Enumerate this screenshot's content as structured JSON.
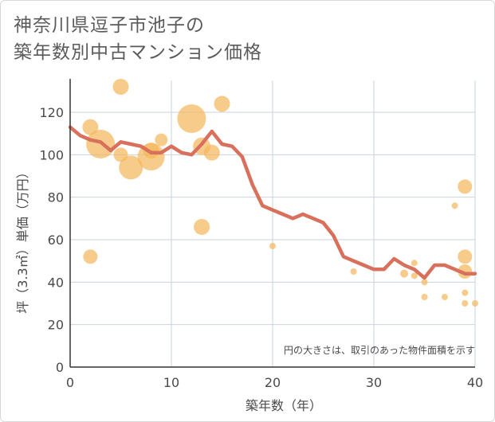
{
  "title_line1": "神奈川県逗子市池子の",
  "title_line2": "築年数別中古マンション価格",
  "chart_data": {
    "type": "scatter",
    "title": "神奈川県逗子市池子の築年数別中古マンション価格",
    "xlabel": "築年数（年）",
    "ylabel": "坪（3.3㎡）単価（万円）",
    "xlim": [
      0,
      40
    ],
    "ylim": [
      0,
      135
    ],
    "xticks": [
      0,
      10,
      20,
      30,
      40
    ],
    "yticks": [
      0,
      20,
      40,
      60,
      80,
      100,
      120
    ],
    "grid": true,
    "note": "円の大きさは、取引のあった物件面積を示す",
    "colors": {
      "bubble": "#f3b75a",
      "line": "#d8705c",
      "grid": "#c9d3de",
      "axis": "#333333"
    },
    "bubbles": [
      {
        "x": 2,
        "y": 113,
        "r": 10
      },
      {
        "x": 2,
        "y": 52,
        "r": 9
      },
      {
        "x": 3,
        "y": 105,
        "r": 18
      },
      {
        "x": 5,
        "y": 132,
        "r": 10
      },
      {
        "x": 5,
        "y": 100,
        "r": 9
      },
      {
        "x": 6,
        "y": 94,
        "r": 15
      },
      {
        "x": 8,
        "y": 99,
        "r": 17
      },
      {
        "x": 8,
        "y": 102,
        "r": 10
      },
      {
        "x": 9,
        "y": 107,
        "r": 8
      },
      {
        "x": 12,
        "y": 117,
        "r": 18
      },
      {
        "x": 13,
        "y": 104,
        "r": 11
      },
      {
        "x": 13,
        "y": 66,
        "r": 10
      },
      {
        "x": 14,
        "y": 101,
        "r": 10
      },
      {
        "x": 15,
        "y": 124,
        "r": 10
      },
      {
        "x": 20,
        "y": 57,
        "r": 4
      },
      {
        "x": 28,
        "y": 45,
        "r": 4
      },
      {
        "x": 33,
        "y": 44,
        "r": 5
      },
      {
        "x": 34,
        "y": 49,
        "r": 4
      },
      {
        "x": 34,
        "y": 43,
        "r": 4
      },
      {
        "x": 35,
        "y": 40,
        "r": 4
      },
      {
        "x": 35,
        "y": 33,
        "r": 4
      },
      {
        "x": 37,
        "y": 33,
        "r": 4
      },
      {
        "x": 38,
        "y": 76,
        "r": 4
      },
      {
        "x": 39,
        "y": 85,
        "r": 9
      },
      {
        "x": 39,
        "y": 52,
        "r": 9
      },
      {
        "x": 39,
        "y": 45,
        "r": 9
      },
      {
        "x": 39,
        "y": 35,
        "r": 4
      },
      {
        "x": 39,
        "y": 30,
        "r": 4
      },
      {
        "x": 40,
        "y": 30,
        "r": 4
      }
    ],
    "trend": {
      "x": [
        0,
        1,
        2,
        3,
        4,
        5,
        6,
        7,
        8,
        9,
        10,
        11,
        12,
        13,
        14,
        15,
        16,
        17,
        18,
        19,
        20,
        21,
        22,
        23,
        24,
        25,
        26,
        27,
        28,
        29,
        30,
        31,
        32,
        33,
        34,
        35,
        36,
        37,
        38,
        39,
        40
      ],
      "y": [
        113,
        109,
        107,
        106,
        102,
        106,
        105,
        104,
        101,
        101,
        104,
        101,
        100,
        105,
        111,
        105,
        104,
        99,
        86,
        76,
        74,
        72,
        70,
        72,
        70,
        68,
        62,
        52,
        50,
        48,
        46,
        46,
        51,
        48,
        46,
        42,
        48,
        48,
        46,
        44,
        44
      ]
    }
  }
}
